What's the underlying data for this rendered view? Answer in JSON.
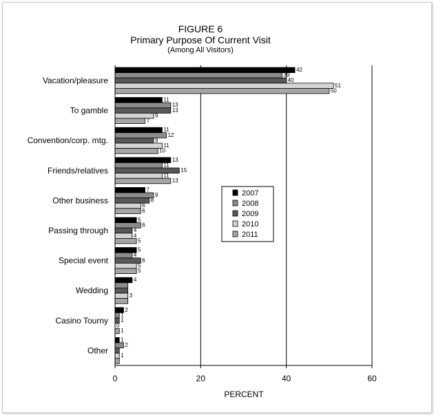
{
  "chart_data": {
    "type": "bar",
    "orientation": "horizontal",
    "title": "FIGURE 6",
    "subtitle": "Primary Purpose Of Current Visit",
    "subtitle2": "(Among All Visitors)",
    "xlabel": "PERCENT",
    "ylabel": "",
    "xlim": [
      0,
      60
    ],
    "xticks": [
      0,
      20,
      40,
      60
    ],
    "grid": "vertical",
    "legend_position": "center-right",
    "categories": [
      "Vacation/pleasure",
      "To gamble",
      "Convention/corp. mtg.",
      "Friends/relatives",
      "Other business",
      "Passing through",
      "Special event",
      "Wedding",
      "Casino Tourny",
      "Other"
    ],
    "series": [
      {
        "name": "2007",
        "color": "#000000",
        "values": [
          42,
          11,
          11,
          13,
          7,
          5,
          5,
          4,
          2,
          1
        ]
      },
      {
        "name": "2008",
        "color": "#8c8c8c",
        "values": [
          39,
          13,
          12,
          11,
          9,
          6,
          4,
          3,
          1,
          2
        ]
      },
      {
        "name": "2009",
        "color": "#595959",
        "values": [
          40,
          13,
          9,
          15,
          8,
          4,
          6,
          3,
          1,
          1
        ]
      },
      {
        "name": "2010",
        "color": "#d4d4d4",
        "values": [
          51,
          9,
          11,
          11,
          6,
          4,
          5,
          3,
          0,
          1
        ]
      },
      {
        "name": "2011",
        "color": "#a6a6a6",
        "values": [
          50,
          7,
          10,
          13,
          6,
          5,
          5,
          3,
          1,
          1
        ]
      }
    ],
    "data_labels": [
      [
        "42",
        "39",
        "40",
        "51",
        "50"
      ],
      [
        "11",
        "13",
        "13",
        "9",
        "7"
      ],
      [
        "11",
        "12",
        "9",
        "11",
        "10"
      ],
      [
        "13",
        "11",
        "15",
        "11",
        "13"
      ],
      [
        "7",
        "9",
        "8",
        "6",
        "6"
      ],
      [
        "5",
        "6",
        "4",
        "4",
        "5"
      ],
      [
        "5",
        "4",
        "6",
        "5",
        "5"
      ],
      [
        "4",
        "",
        "",
        "3",
        ""
      ],
      [
        "2",
        "1",
        "1",
        "0",
        "1"
      ],
      [
        "1",
        "2",
        "",
        "1",
        ""
      ]
    ]
  }
}
